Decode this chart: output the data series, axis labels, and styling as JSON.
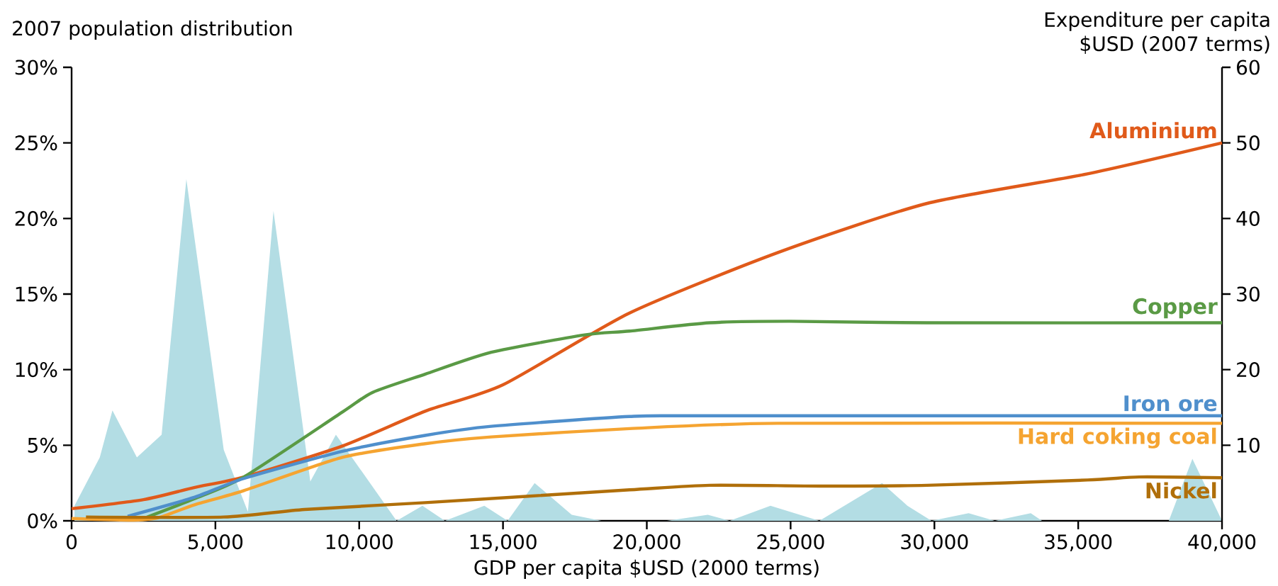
{
  "chart_data": {
    "type": "area",
    "ylabel": "2007 population distribution",
    "y2label": "Expenditure per capita $USD (2007 terms)",
    "xlabel": "GDP per capita $USD (2000 terms)",
    "xlim": [
      0,
      40000
    ],
    "xticks": [
      0,
      {
        "value": 5000,
        "label": "5,000"
      },
      {
        "value": 10000,
        "label": "10,000"
      },
      {
        "value": 15000,
        "label": "15,000"
      },
      {
        "value": 20000,
        "label": "20,000"
      },
      {
        "value": 25000,
        "label": "25,000"
      },
      {
        "value": 30000,
        "label": "30,000"
      },
      {
        "value": 35000,
        "label": "35,000"
      },
      {
        "value": 40000,
        "label": "40,000"
      }
    ],
    "ylim": [
      0,
      30
    ],
    "yticks": [
      {
        "value": 0,
        "label": "0%"
      },
      {
        "value": 5,
        "label": "5%"
      },
      {
        "value": 10,
        "label": "10%"
      },
      {
        "value": 15,
        "label": "15%"
      },
      {
        "value": 20,
        "label": "20%"
      },
      {
        "value": 25,
        "label": "25%"
      },
      {
        "value": 30,
        "label": "30%"
      }
    ],
    "y2lim": [
      0,
      60
    ],
    "y2ticks": [
      10,
      20,
      30,
      40,
      50,
      60
    ],
    "series": [
      {
        "color": "#b3dde4",
        "x": [
          100,
          980,
          1420,
          2270,
          3130,
          3990,
          5290,
          6130,
          7020,
          8300,
          9190,
          11300,
          12200,
          12980,
          14350,
          15160,
          16100,
          17390,
          18420,
          20700,
          22120,
          22880,
          24300,
          26000,
          28180,
          29060,
          29900,
          31190,
          32100,
          33350,
          33740,
          38150,
          38970,
          40000
        ],
        "values": [
          1.0,
          4.2,
          7.3,
          4.2,
          5.7,
          22.6,
          4.7,
          0.6,
          20.5,
          2.6,
          5.7,
          0,
          1.0,
          0,
          1.0,
          0,
          2.5,
          0.4,
          0,
          0,
          0.4,
          0,
          1.0,
          0,
          2.5,
          1.0,
          0,
          0.5,
          0,
          0.5,
          0,
          0,
          4.1,
          0
        ]
      },
      {
        "type": "line",
        "axis": "y2",
        "name": "Aluminium",
        "color": "#e05a1a",
        "x": [
          0,
          2500,
          4260,
          6000,
          9420,
          12290,
          15000,
          19400,
          24560,
          29750,
          35320,
          40000
        ],
        "values": [
          1.6,
          2.8,
          4.4,
          5.8,
          9.9,
          14.5,
          18.0,
          27.5,
          35.5,
          42.0,
          45.9,
          50.0
        ]
      },
      {
        "type": "line",
        "axis": "y2",
        "name": "Copper",
        "color": "#5a9a45",
        "x": [
          2500,
          4260,
          5990,
          9420,
          10470,
          12290,
          14590,
          17840,
          19400,
          22190,
          24950,
          29750,
          40000
        ],
        "values": [
          0.3,
          2.9,
          5.8,
          14.4,
          17.0,
          19.4,
          22.3,
          24.6,
          25.1,
          26.2,
          26.4,
          26.2,
          26.2
        ]
      },
      {
        "type": "line",
        "axis": "y2",
        "name": "Iron ore",
        "color": "#4f8fcc",
        "x": [
          1950,
          4260,
          5990,
          9420,
          12290,
          14590,
          19400,
          22000,
          40000
        ],
        "values": [
          0.6,
          3.1,
          5.6,
          9.2,
          11.3,
          12.5,
          13.8,
          13.9,
          13.9
        ]
      },
      {
        "type": "line",
        "axis": "y2",
        "name": "Hard coking coal",
        "color": "#f5a431",
        "x": [
          0,
          2000,
          3000,
          4260,
          5990,
          9420,
          12290,
          14590,
          19400,
          24560,
          40000
        ],
        "values": [
          0.3,
          0.1,
          0.4,
          2.1,
          4.0,
          8.4,
          10.2,
          11.1,
          12.2,
          12.9,
          12.9
        ]
      },
      {
        "type": "line",
        "axis": "y2",
        "name": "Nickel",
        "color": "#b06f0a",
        "x": [
          500,
          5290,
          8100,
          12290,
          19400,
          22190,
          26000,
          29750,
          35320,
          37120,
          40000
        ],
        "values": [
          0.5,
          0.5,
          1.5,
          2.4,
          4.1,
          4.7,
          4.6,
          4.7,
          5.4,
          5.8,
          5.7
        ]
      }
    ]
  }
}
